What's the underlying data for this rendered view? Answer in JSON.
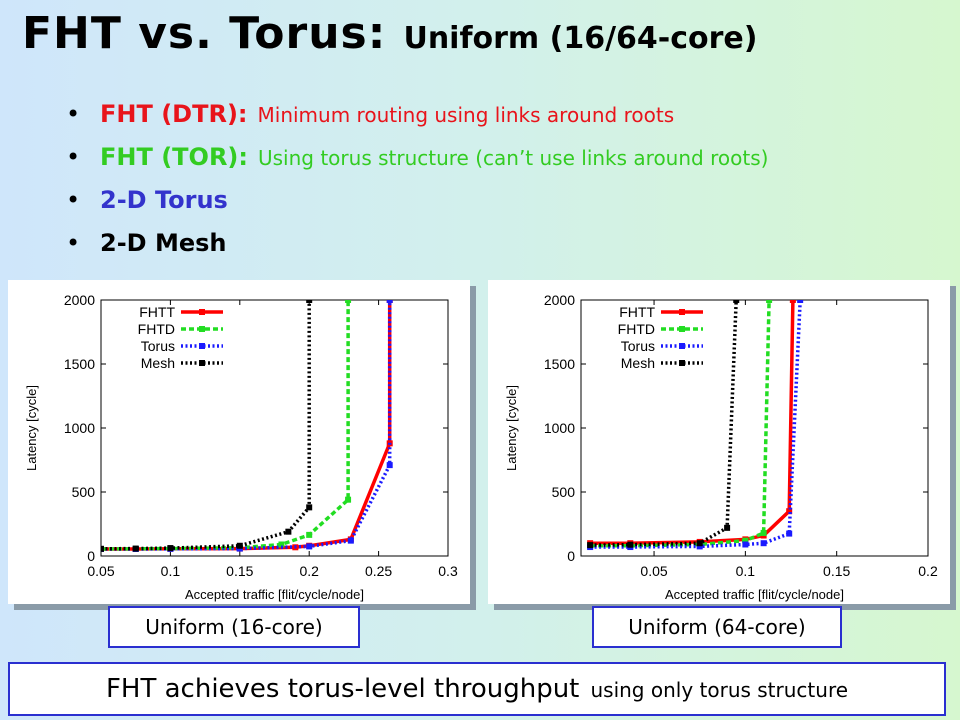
{
  "title": {
    "main": "FHT vs. Torus:",
    "sub": "Uniform (16/64-core)"
  },
  "bullets": [
    {
      "key": "FHT (DTR):",
      "desc": "Minimum routing using links around roots",
      "color": "#e8141b"
    },
    {
      "key": "FHT (TOR):",
      "desc": "Using torus structure (can’t use links around roots)",
      "color": "#33cc22"
    },
    {
      "key": "2-D Torus",
      "desc": "",
      "color": "#3333cc"
    },
    {
      "key": "2-D Mesh",
      "desc": "",
      "color": "#000000"
    }
  ],
  "captions": {
    "left": "Uniform (16-core)",
    "right": "Uniform (64-core)"
  },
  "footer": {
    "main": "FHT achieves torus-level throughput",
    "sub": "using only torus structure"
  },
  "chart_data": [
    {
      "type": "line",
      "xlabel": "Accepted traffic [flit/cycle/node]",
      "ylabel": "Latency [cycle]",
      "xlim": [
        0.05,
        0.3
      ],
      "ylim": [
        0,
        2000
      ],
      "xticks": [
        "0.05",
        "0.1",
        "0.15",
        "0.2",
        "0.25",
        "0.3"
      ],
      "yticks": [
        "0",
        "500",
        "1000",
        "1500",
        "2000"
      ],
      "legend_position": "top-left",
      "series": [
        {
          "name": "FHTT",
          "color": "#ff0000",
          "style": "solid",
          "x": [
            0.05,
            0.075,
            0.1,
            0.15,
            0.19,
            0.2,
            0.23,
            0.258,
            0.258
          ],
          "y": [
            55,
            55,
            56,
            58,
            68,
            80,
            130,
            880,
            2000
          ]
        },
        {
          "name": "FHTD",
          "color": "#22dd22",
          "style": "dashed",
          "x": [
            0.05,
            0.075,
            0.1,
            0.15,
            0.18,
            0.2,
            0.228,
            0.228
          ],
          "y": [
            55,
            56,
            58,
            64,
            90,
            165,
            440,
            2000
          ]
        },
        {
          "name": "Torus",
          "color": "#1a1aff",
          "style": "dotted",
          "x": [
            0.05,
            0.075,
            0.1,
            0.15,
            0.2,
            0.23,
            0.258,
            0.258
          ],
          "y": [
            55,
            55,
            56,
            58,
            75,
            120,
            710,
            2000
          ]
        },
        {
          "name": "Mesh",
          "color": "#000000",
          "style": "dotted",
          "x": [
            0.05,
            0.075,
            0.1,
            0.15,
            0.185,
            0.2,
            0.2
          ],
          "y": [
            56,
            58,
            62,
            80,
            190,
            380,
            2000
          ]
        }
      ]
    },
    {
      "type": "line",
      "xlabel": "Accepted traffic [flit/cycle/node]",
      "ylabel": "Latency [cycle]",
      "xlim": [
        0.01,
        0.2
      ],
      "ylim": [
        0,
        2000
      ],
      "xticks": [
        "0.05",
        "0.1",
        "0.15",
        "0.2"
      ],
      "yticks": [
        "0",
        "500",
        "1000",
        "1500",
        "2000"
      ],
      "legend_position": "top-left",
      "series": [
        {
          "name": "FHTT",
          "color": "#ff0000",
          "style": "solid",
          "x": [
            0.015,
            0.037,
            0.075,
            0.1,
            0.11,
            0.124,
            0.126
          ],
          "y": [
            100,
            100,
            110,
            130,
            160,
            350,
            2000
          ]
        },
        {
          "name": "FHTD",
          "color": "#22dd22",
          "style": "dashed",
          "x": [
            0.015,
            0.037,
            0.075,
            0.1,
            0.11,
            0.113
          ],
          "y": [
            80,
            80,
            90,
            120,
            180,
            2000
          ]
        },
        {
          "name": "Torus",
          "color": "#1a1aff",
          "style": "dotted",
          "x": [
            0.015,
            0.037,
            0.075,
            0.1,
            0.11,
            0.124,
            0.13
          ],
          "y": [
            70,
            70,
            75,
            90,
            100,
            175,
            2000
          ]
        },
        {
          "name": "Mesh",
          "color": "#000000",
          "style": "dotted",
          "x": [
            0.015,
            0.037,
            0.075,
            0.09,
            0.095
          ],
          "y": [
            85,
            88,
            100,
            220,
            2000
          ]
        }
      ]
    }
  ]
}
